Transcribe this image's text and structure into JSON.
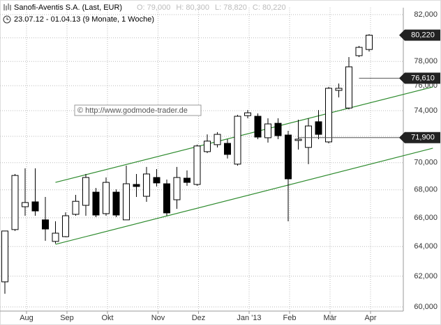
{
  "chart_data": {
    "type": "candlestick",
    "title": "Sanofi-Aventis S.A. (Last, EUR)",
    "legend_values": [
      "O: 79,000",
      "H: 80,300",
      "L: 78,820",
      "C: 80,220"
    ],
    "subtitle": "23.07.12 - 01.04.13 (9 Monate, 1 Woche)",
    "watermark": "© http://www.godmode-trader.de",
    "categories": [
      null,
      null,
      "Aug",
      null,
      null,
      null,
      "Sep",
      null,
      null,
      null,
      "Okt",
      null,
      null,
      null,
      null,
      "Nov",
      null,
      null,
      null,
      "Dez",
      null,
      null,
      null,
      null,
      "Jan '13",
      null,
      null,
      null,
      "Feb",
      null,
      null,
      null,
      "Mär",
      null,
      null,
      null,
      "Apr"
    ],
    "open": [
      61630,
      65170,
      66780,
      67130,
      65850,
      64350,
      64680,
      66240,
      66880,
      67830,
      66290,
      67830,
      65850,
      68390,
      67530,
      68900,
      68440,
      67280,
      68850,
      68390,
      70830,
      71360,
      71460,
      69890,
      73610,
      73560,
      71890,
      73010,
      72100,
      71680,
      71150,
      73130,
      71570,
      75620,
      74210,
      78480,
      79000
    ],
    "high": [
      65070,
      69160,
      69580,
      69580,
      67480,
      65750,
      66380,
      67630,
      69160,
      68130,
      68900,
      68030,
      69780,
      69160,
      69680,
      69520,
      68750,
      69680,
      69420,
      71360,
      72150,
      72320,
      71780,
      73670,
      74050,
      73780,
      73400,
      73400,
      72420,
      73290,
      73400,
      74050,
      75900,
      76180,
      78360,
      79300,
      80300
    ],
    "low": [
      60850,
      65070,
      66140,
      66140,
      64390,
      64200,
      64640,
      66140,
      66140,
      66040,
      66140,
      66040,
      65850,
      67480,
      67130,
      68240,
      66140,
      66630,
      68290,
      68290,
      70720,
      71150,
      70310,
      69780,
      73400,
      71780,
      71520,
      71780,
      65750,
      70990,
      69890,
      71780,
      71460,
      75060,
      74100,
      78360,
      78820
    ],
    "close": [
      65070,
      69050,
      67080,
      66480,
      65210,
      64920,
      66140,
      67170,
      68900,
      66190,
      68540,
      66190,
      68440,
      68240,
      69160,
      68500,
      66340,
      68900,
      68540,
      71260,
      71630,
      72150,
      70620,
      73560,
      73830,
      71940,
      72960,
      72050,
      68800,
      71780,
      72800,
      72150,
      75790,
      75790,
      77550,
      79180,
      80220
    ],
    "up_color": "#ffffff",
    "down_color": "#000000",
    "log_scale": true,
    "grid": true,
    "ylim": [
      60000,
      82000
    ],
    "yticks": [
      {
        "value": 60000,
        "label": "60,000"
      },
      {
        "value": 62000,
        "label": "62,000"
      },
      {
        "value": 64000,
        "label": "64,000"
      },
      {
        "value": 66000,
        "label": "66,000"
      },
      {
        "value": 68000,
        "label": "68,000"
      },
      {
        "value": 70000,
        "label": "70,000"
      },
      {
        "value": 72000,
        "label": "72,000"
      },
      {
        "value": 74000,
        "label": "74,000"
      },
      {
        "value": 76000,
        "label": "76,000"
      },
      {
        "value": 78000,
        "label": "78,000"
      },
      {
        "value": 80000,
        "label": "80,000"
      },
      {
        "value": 82000,
        "label": "82,000"
      }
    ],
    "trendlines": [
      {
        "color": "#2e8b2e",
        "x": [
          5,
          42.3
        ],
        "values": [
          68540,
          75900
        ]
      },
      {
        "color": "#2e8b2e",
        "x": [
          5,
          42.3
        ],
        "values": [
          64150,
          71090
        ]
      }
    ],
    "price_markers": [
      {
        "value": 80220,
        "label": "80,220"
      },
      {
        "value": 76610,
        "label": "76,610",
        "from": 35
      },
      {
        "value": 71900,
        "label": "71,900",
        "from": 29
      }
    ]
  }
}
